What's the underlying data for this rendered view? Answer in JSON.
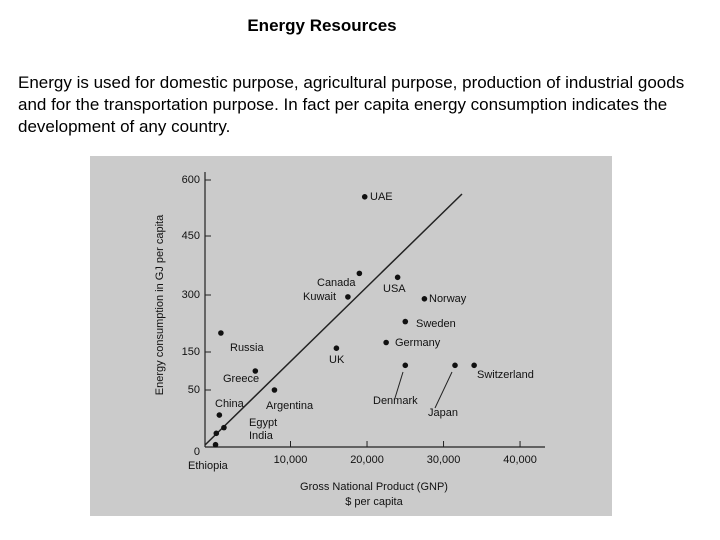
{
  "title": "Energy Resources",
  "text": "Energy is used for domestic purpose, agricultural purpose, production of industrial goods and for the transportation purpose. In fact per capita energy consumption indicates the development of any country.",
  "chart_data": {
    "type": "scatter",
    "x_label": "Gross National Product (GNP)",
    "x_label_2": "$ per capita",
    "y_label": "Energy consumption in GJ per capita",
    "point_labels": [
      "UAE",
      "Canada",
      "USA",
      "Kuwait",
      "Norway",
      "Sweden",
      "Germany",
      "Russia",
      "UK",
      "Denmark",
      "Japan",
      "Switzerland",
      "Greece",
      "Argentina",
      "China",
      "Egypt",
      "India",
      "Ethiopia"
    ],
    "x": [
      19700,
      19000,
      24000,
      17500,
      27500,
      25000,
      22500,
      900,
      16000,
      25000,
      31500,
      34000,
      5400,
      7900,
      700,
      1300,
      300,
      200
    ],
    "values": [
      555,
      355,
      345,
      295,
      290,
      230,
      175,
      200,
      160,
      115,
      115,
      115,
      100,
      50,
      28,
      17,
      12,
      2
    ],
    "color": "#111111",
    "xlim": [
      0,
      43000
    ],
    "xticks": [
      {
        "value": 10000,
        "label": "10,000"
      },
      {
        "value": 20000,
        "label": "20,000"
      },
      {
        "value": 30000,
        "label": "30,000"
      },
      {
        "value": 40000,
        "label": "40,000"
      }
    ],
    "ylim": [
      0,
      600
    ],
    "yticks": [
      0,
      50,
      150,
      300,
      450,
      600
    ]
  }
}
